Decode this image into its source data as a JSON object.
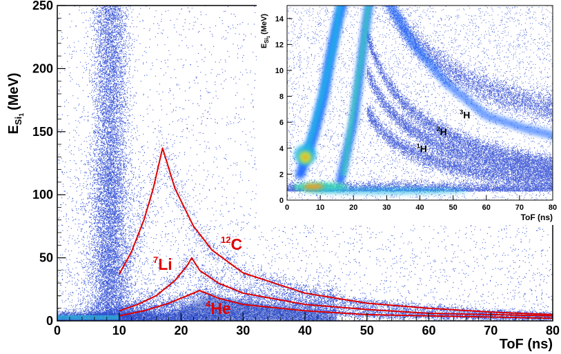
{
  "chart_data": [
    {
      "type": "scatter",
      "title": "",
      "xlabel": "ToF (ns)",
      "ylabel_main": "E",
      "ylabel_sub": "Si",
      "ylabel_subsub": "1",
      "ylabel_unit": "(MeV)",
      "xlim": [
        0,
        80
      ],
      "ylim": [
        0,
        250
      ],
      "x_ticks": [
        0,
        10,
        20,
        30,
        40,
        50,
        60,
        70,
        80
      ],
      "y_ticks": [
        0,
        50,
        100,
        150,
        200,
        250
      ],
      "grid": false,
      "density_bands": [
        {
          "name": "gamma-flash",
          "x_center": 8.5,
          "x_width": 2.5,
          "y_range": [
            0,
            250
          ]
        },
        {
          "name": "light-particle-band",
          "x_range": [
            0,
            40
          ],
          "y_range": [
            0,
            25
          ]
        }
      ],
      "series": [
        {
          "mass_number": "12",
          "symbol": "C",
          "color": "#e00000",
          "rise": [
            [
              10,
              37
            ],
            [
              12,
              55
            ],
            [
              14,
              80
            ],
            [
              15.5,
              105
            ],
            [
              17,
              137
            ]
          ],
          "fall": [
            [
              17,
              137
            ],
            [
              19,
              105
            ],
            [
              22,
              75
            ],
            [
              25,
              56
            ],
            [
              30,
              38
            ],
            [
              40,
              22
            ],
            [
              50,
              14
            ],
            [
              60,
              10
            ],
            [
              70,
              7
            ],
            [
              80,
              5
            ]
          ]
        },
        {
          "mass_number": "7",
          "symbol": "Li",
          "color": "#e00000",
          "rise": [
            [
              10,
              8
            ],
            [
              13,
              13
            ],
            [
              16,
              20
            ],
            [
              19,
              32
            ],
            [
              21,
              44
            ],
            [
              21.7,
              50
            ]
          ],
          "fall": [
            [
              21.7,
              50
            ],
            [
              23,
              40
            ],
            [
              26,
              30
            ],
            [
              30,
              22
            ],
            [
              40,
              13
            ],
            [
              50,
              9
            ],
            [
              60,
              6
            ],
            [
              70,
              5
            ],
            [
              80,
              4
            ]
          ]
        },
        {
          "mass_number": "4",
          "symbol": "He",
          "color": "#e00000",
          "rise": [
            [
              10,
              4
            ],
            [
              14,
              8
            ],
            [
              18,
              14
            ],
            [
              21,
              20
            ],
            [
              23,
              24
            ]
          ],
          "fall": [
            [
              23,
              24
            ],
            [
              26,
              18
            ],
            [
              30,
              13
            ],
            [
              40,
              8
            ],
            [
              50,
              5
            ],
            [
              60,
              4
            ],
            [
              70,
              3
            ],
            [
              80,
              2
            ]
          ]
        }
      ]
    },
    {
      "type": "heatmap",
      "title": "",
      "xlabel": "ToF (ns)",
      "ylabel_main": "E",
      "ylabel_sub": "Si",
      "ylabel_subsub": "1",
      "ylabel_unit": "(MeV)",
      "xlim": [
        0,
        80
      ],
      "ylim": [
        0,
        15
      ],
      "x_ticks": [
        0,
        10,
        20,
        30,
        40,
        50,
        60,
        70,
        80
      ],
      "y_ticks": [
        0,
        2,
        4,
        6,
        8,
        10,
        12,
        14
      ],
      "grid": false,
      "colormap": [
        "#0000b0",
        "#1565ff",
        "#22b4e6",
        "#3ddcb0",
        "#c8e640",
        "#f0a020"
      ],
      "hotspots": [
        {
          "x": 5,
          "y": 3.5,
          "level": "high"
        },
        {
          "x": 8,
          "y": 1.0,
          "level": "high"
        },
        {
          "x": 18,
          "y": 1.0,
          "level": "medium"
        }
      ],
      "labels": [
        {
          "mass_number": "1",
          "symbol": "H",
          "x": 39,
          "y": 3.7
        },
        {
          "mass_number": "2",
          "symbol": "H",
          "x": 45,
          "y": 5.0
        },
        {
          "mass_number": "3",
          "symbol": "H",
          "x": 52,
          "y": 6.3
        }
      ]
    }
  ]
}
